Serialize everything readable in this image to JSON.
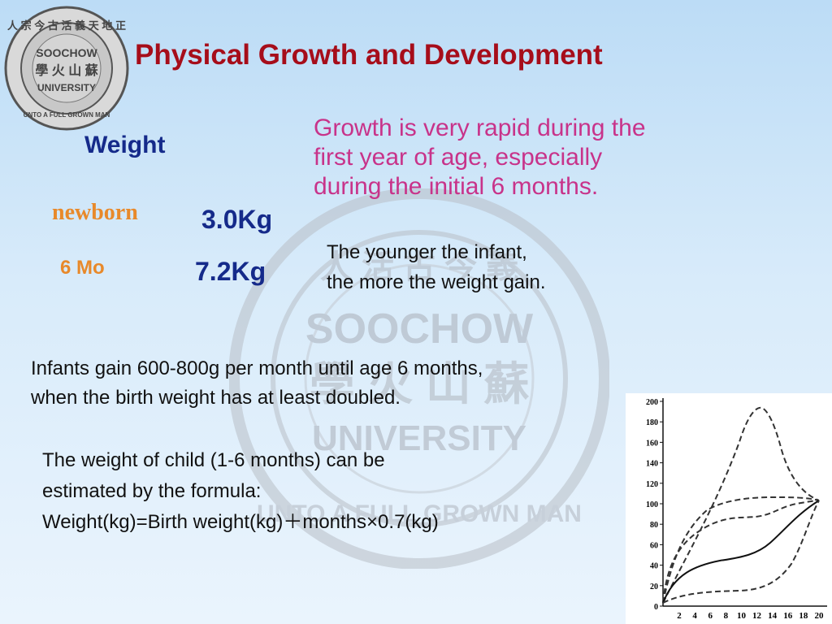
{
  "title": "Physical Growth and Development",
  "intro": [
    "Growth is very rapid during the",
    "first year of age, especially",
    "during the initial 6 months."
  ],
  "weight": {
    "heading": "Weight",
    "newborn_label": "newborn",
    "newborn_value": "3.0Kg",
    "six_month_label": "6 Mo",
    "six_month_value": "7.2Kg"
  },
  "younger_note": [
    "The younger the infant,",
    "the more the weight gain."
  ],
  "infants_note": [
    "Infants gain 600-800g per month until age 6 months,",
    "when the birth weight has at least doubled."
  ],
  "formula_note": [
    "The weight of child  (1-6 months) can be",
    "estimated by the formula:",
    "Weight(kg)=Birth weight(kg)＋months×0.7(kg)"
  ],
  "logo": {
    "name": "soochow-university-seal",
    "text_top": "SOOCHOW",
    "text_mid": "UNIVERSITY",
    "text_bottom": "UNTO A FULL GROWN MAN"
  },
  "growth_chart": {
    "y_ticks": [
      "200",
      "180",
      "160",
      "140",
      "120",
      "100",
      "80",
      "60",
      "40",
      "20",
      "0"
    ],
    "x_ticks": [
      "2",
      "4",
      "6",
      "8",
      "10",
      "12",
      "14",
      "16",
      "18",
      "20"
    ]
  }
}
